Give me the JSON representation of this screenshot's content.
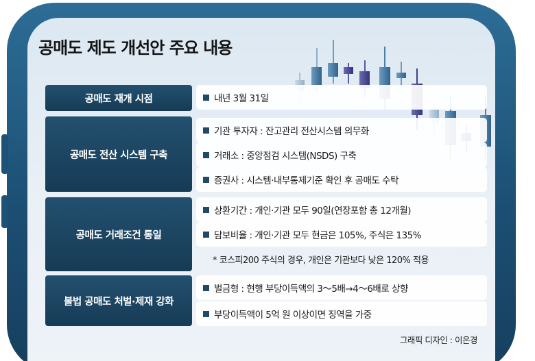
{
  "title": "공매도 제도 개선안 주요 내용",
  "sections": [
    {
      "label": "공매도 재개 시점",
      "items": [
        {
          "text": "내년 3월 31일",
          "type": "bullet"
        }
      ]
    },
    {
      "label": "공매도 전산 시스템 구축",
      "items": [
        {
          "text": "기관 투자자 : 잔고관리 전산시스템 의무화",
          "type": "bullet"
        },
        {
          "text": "거래소 : 중앙점검 시스템(NSDS) 구축",
          "type": "bullet"
        },
        {
          "text": "증권사 : 시스템·내부통제기준 확인 후 공매도 수탁",
          "type": "bullet"
        }
      ]
    },
    {
      "label": "공매도 거래조건 통일",
      "items": [
        {
          "text": "상환기간 : 개인·기관 모두 90일(연장포함 총 12개월)",
          "type": "bullet"
        },
        {
          "text": "담보비율 : 개인·기관 모두 현금은 105%, 주식은 135%",
          "type": "bullet"
        },
        {
          "text": "* 코스피200 주식의 경우, 개인은 기관보다 낮은 120% 적용",
          "type": "note"
        }
      ]
    },
    {
      "label": "불법 공매도 처벌·제재 강화",
      "items": [
        {
          "text": "벌금형 : 현행 부당이득액의 3～5배→4～6배로 상향",
          "type": "bullet"
        },
        {
          "text": "부당이득액이 5억 원 이상이면 징역을 가중",
          "type": "bullet"
        }
      ]
    }
  ],
  "credit": "그래픽 디자인 : 이은경",
  "colors": {
    "frame": "#1c4f74",
    "label_bg": "#1d4663",
    "candle_light": "#9fbcd3",
    "candle_mid": "#4a7fa8",
    "candle_dark": "#4a4a8c"
  }
}
